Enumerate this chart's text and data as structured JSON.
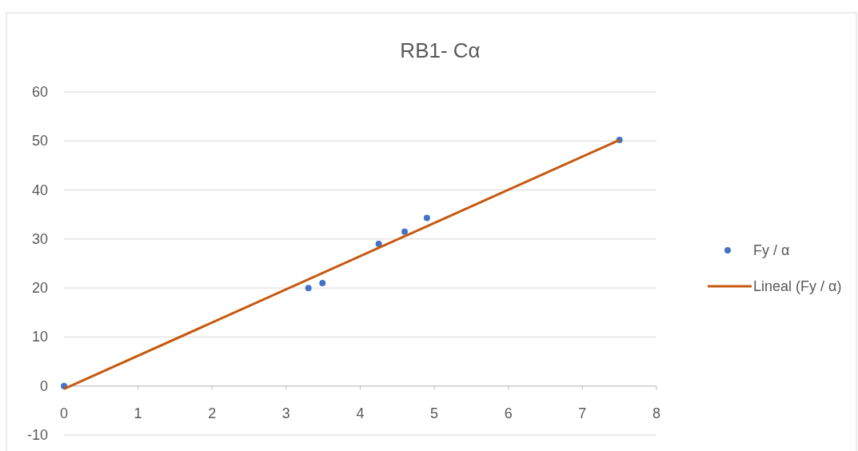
{
  "chart_data": {
    "type": "scatter",
    "title": "RB1- Cα",
    "series": [
      {
        "name": "Fy / α",
        "marker": "circle",
        "color": "#4472c4",
        "x": [
          0,
          3.3,
          3.49,
          4.25,
          4.6,
          4.9,
          7.5
        ],
        "values": [
          0,
          20,
          21,
          29,
          31.5,
          34.3,
          50.2
        ]
      },
      {
        "name": "Lineal (Fy / α)",
        "type": "line",
        "marker": "none",
        "color": "#c55a11",
        "x": [
          0,
          7.5
        ],
        "values": [
          -0.6,
          50.2
        ]
      }
    ],
    "xlim": [
      0,
      8
    ],
    "xticks": [
      0,
      1,
      2,
      3,
      4,
      5,
      6,
      7,
      8
    ],
    "ylim": [
      -10,
      60
    ],
    "yticks": [
      -10,
      0,
      10,
      20,
      30,
      40,
      50,
      60
    ],
    "grid": "y",
    "legend": "right"
  }
}
